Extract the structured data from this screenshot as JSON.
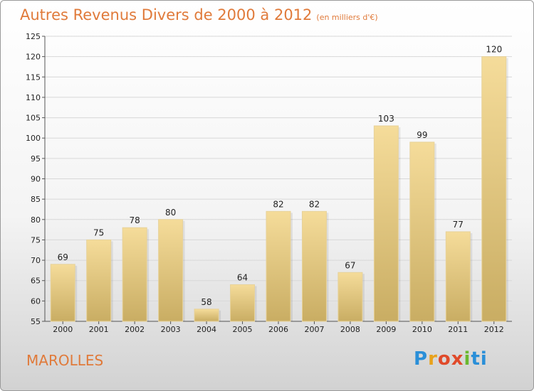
{
  "page": {
    "title": "Autres Revenus Divers de 2000 à 2012",
    "subtitle": "(en milliers d'€)",
    "commune": "MAROLLES",
    "logo": [
      "P",
      "r",
      "o",
      "x",
      "i",
      "ti"
    ]
  },
  "colors": {
    "title": "#e07a3a",
    "bar_top": "#f5dc9a",
    "bar_bottom": "#c9ad63",
    "grid": "#d8d8d8"
  },
  "chart_data": {
    "type": "bar",
    "title": "Autres Revenus Divers de 2000 à 2012",
    "subtitle": "(en milliers d'€)",
    "categories": [
      "2000",
      "2001",
      "2002",
      "2003",
      "2004",
      "2005",
      "2006",
      "2007",
      "2008",
      "2009",
      "2010",
      "2011",
      "2012"
    ],
    "values": [
      69,
      75,
      78,
      80,
      58,
      64,
      82,
      82,
      67,
      103,
      99,
      77,
      120
    ],
    "ylim": [
      55,
      125
    ],
    "yticks": [
      55,
      60,
      65,
      70,
      75,
      80,
      85,
      90,
      95,
      100,
      105,
      110,
      115,
      120,
      125
    ],
    "grid": true
  }
}
